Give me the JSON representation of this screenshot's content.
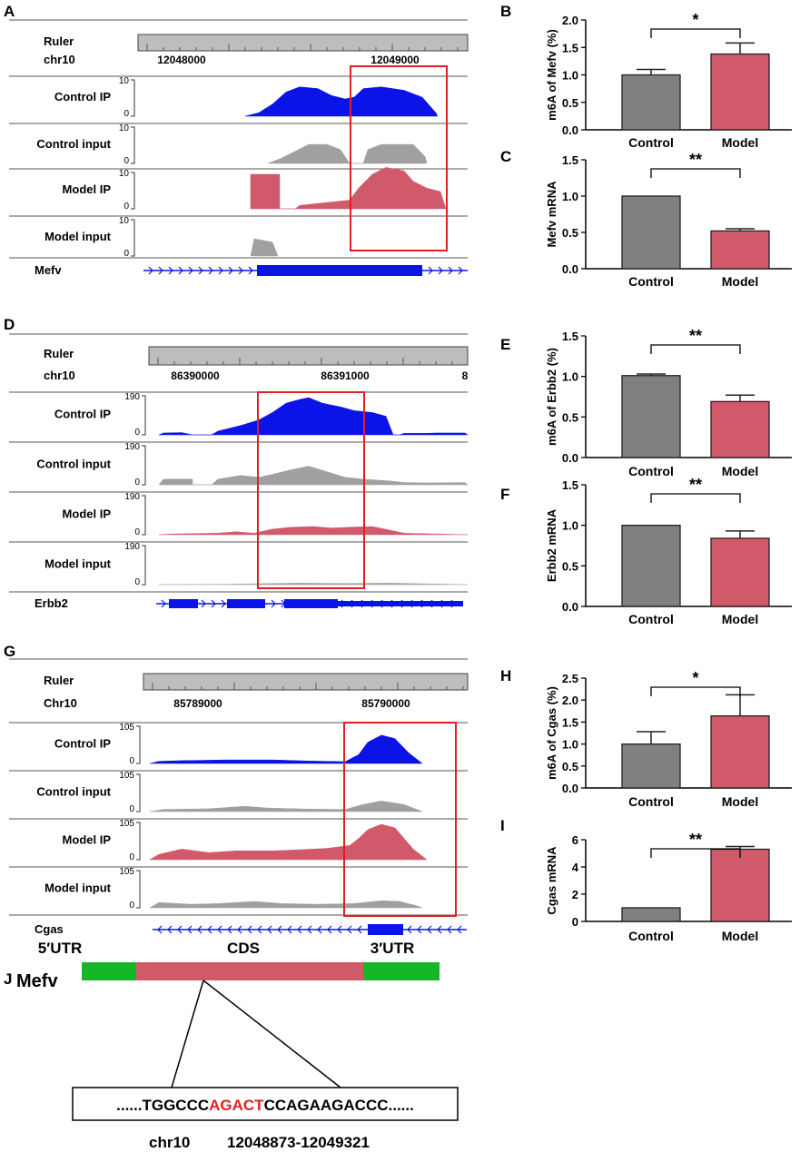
{
  "colors": {
    "control_ip": "#0a14e6",
    "input": "#a0a0a0",
    "model_ip": "#d15a6a",
    "highlight": "#e02020",
    "gene": "#0a14e6",
    "bar_control": "#808080",
    "bar_model": "#d15a6a",
    "utr": "#16b726",
    "cds": "#d15a6a"
  },
  "labels": {
    "ruler": "Ruler",
    "control_ip": "Control IP",
    "control_input": "Control input",
    "model_ip": "Model IP",
    "model_input": "Model input"
  },
  "tracks": [
    {
      "panel": "A",
      "chrom": "chr10",
      "ticks": [
        "12048000",
        "12049000"
      ],
      "ymax": "10",
      "ymin": "0",
      "gene": "Mefv",
      "gene_direction": "forward"
    },
    {
      "panel": "D",
      "chrom": "chr10",
      "ticks": [
        "86390000",
        "86391000",
        "8"
      ],
      "ymax": "190",
      "ymin": "0",
      "gene": "Erbb2",
      "gene_direction": "forward"
    },
    {
      "panel": "G",
      "chrom": "Chr10",
      "ticks": [
        "85789000",
        "85790000"
      ],
      "ymax": "105",
      "ymin": "0",
      "gene": "Cgas",
      "gene_direction": "reverse"
    }
  ],
  "chart_data": [
    {
      "panel": "B",
      "type": "bar",
      "categories": [
        "Control",
        "Model"
      ],
      "values": [
        1.0,
        1.38
      ],
      "errors": [
        0.1,
        0.2
      ],
      "ylabel": "m6A of Mefv (%)",
      "ylim": [
        0,
        2.0
      ],
      "yticks": [
        "0.0",
        "0.5",
        "1.0",
        "1.5",
        "2.0"
      ],
      "significance": "*"
    },
    {
      "panel": "C",
      "type": "bar",
      "categories": [
        "Control",
        "Model"
      ],
      "values": [
        1.0,
        0.52
      ],
      "errors": [
        0,
        0.03
      ],
      "ylabel": "Mefv mRNA",
      "ylim": [
        0,
        1.5
      ],
      "yticks": [
        "0.0",
        "0.5",
        "1.0",
        "1.5"
      ],
      "significance": "**"
    },
    {
      "panel": "E",
      "type": "bar",
      "categories": [
        "Control",
        "Model"
      ],
      "values": [
        1.01,
        0.69
      ],
      "errors": [
        0.02,
        0.08
      ],
      "ylabel": "m6A of Erbb2 (%)",
      "ylim": [
        0,
        1.5
      ],
      "yticks": [
        "0.0",
        "0.5",
        "1.0",
        "1.5"
      ],
      "significance": "**"
    },
    {
      "panel": "F",
      "type": "bar",
      "categories": [
        "Control",
        "Model"
      ],
      "values": [
        1.0,
        0.84
      ],
      "errors": [
        0,
        0.09
      ],
      "ylabel": "Erbb2 mRNA",
      "ylim": [
        0,
        1.5
      ],
      "yticks": [
        "0.0",
        "0.5",
        "1.0",
        "1.5"
      ],
      "significance": "**"
    },
    {
      "panel": "H",
      "type": "bar",
      "categories": [
        "Control",
        "Model"
      ],
      "values": [
        1.0,
        1.64
      ],
      "errors": [
        0.28,
        0.48
      ],
      "ylabel": "m6A of Cgas  (%)",
      "ylim": [
        0,
        2.5
      ],
      "yticks": [
        "0.0",
        "0.5",
        "1.0",
        "1.5",
        "2.0",
        "2.5"
      ],
      "significance": "*"
    },
    {
      "panel": "I",
      "type": "bar",
      "categories": [
        "Control",
        "Model"
      ],
      "values": [
        1.0,
        5.3
      ],
      "errors": [
        0,
        0.2
      ],
      "ylabel": "Cgas mRNA",
      "ylim": [
        0,
        6
      ],
      "yticks": [
        "0",
        "2",
        "4",
        "6"
      ],
      "significance": "**"
    }
  ],
  "panel_j": {
    "letter": "J",
    "gene": "Mefv",
    "utr5": "5′UTR",
    "cds": "CDS",
    "utr3": "3′UTR",
    "seq_before": "......TGGCCC",
    "seq_motif": "AGACT",
    "seq_after": "CCAGAAGACCC......",
    "chrom": "chr10",
    "coords": "12048873-12049321"
  }
}
